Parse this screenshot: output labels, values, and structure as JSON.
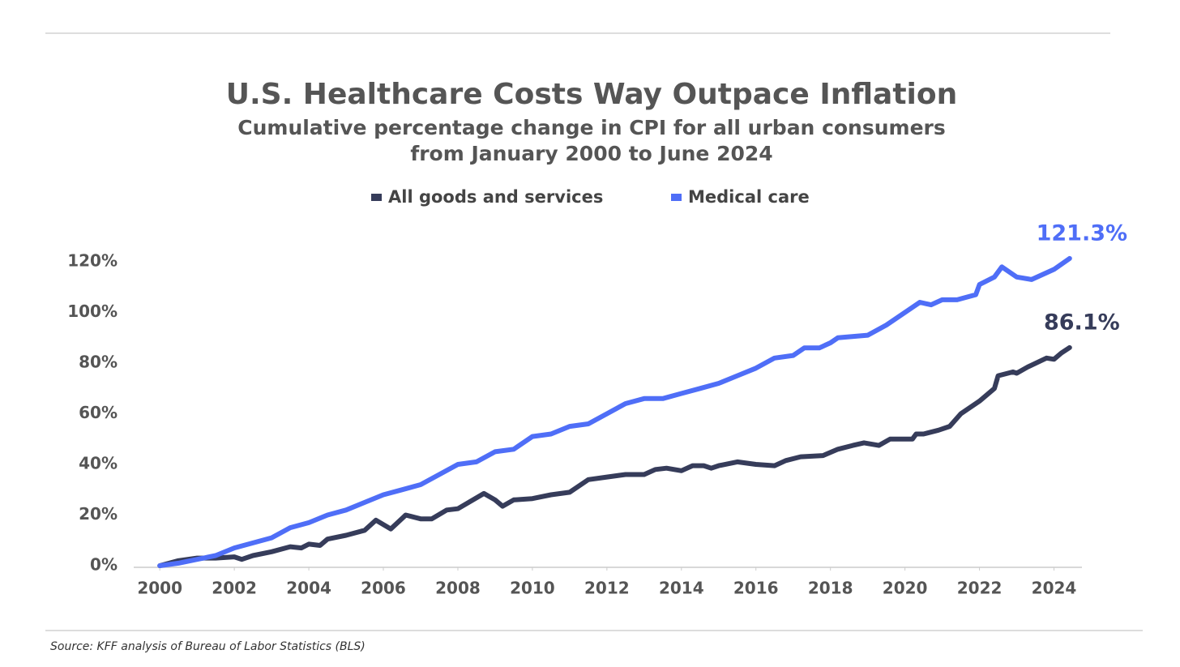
{
  "chart_data": {
    "type": "line",
    "title": "U.S. Healthcare Costs Way Outpace Inflation",
    "subtitle": [
      "Cumulative percentage change in CPI for all urban consumers",
      "from January 2000 to June 2024"
    ],
    "source": "Source: KFF analysis of Bureau of Labor Statistics (BLS)",
    "xlim": [
      1999.3,
      2024.75
    ],
    "xticks": [
      2000,
      2002,
      2004,
      2006,
      2008,
      2010,
      2012,
      2014,
      2016,
      2018,
      2020,
      2022,
      2024
    ],
    "ylim": [
      0,
      120
    ],
    "yticks": [
      {
        "value": 0,
        "label": "0%"
      },
      {
        "value": 20,
        "label": "20%"
      },
      {
        "value": 40,
        "label": "40%"
      },
      {
        "value": 60,
        "label": "60%"
      },
      {
        "value": 80,
        "label": "80%"
      },
      {
        "value": 100,
        "label": "100%"
      },
      {
        "value": 120,
        "label": "120%"
      }
    ],
    "legend": "top",
    "series": [
      {
        "name": "All goods and services",
        "color": "#363c5a",
        "end_label": "86.1%",
        "x": [
          2000,
          2000.5,
          2001,
          2001.5,
          2002,
          2002.2,
          2002.5,
          2003,
          2003.5,
          2003.8,
          2004,
          2004.3,
          2004.5,
          2005,
          2005.5,
          2005.8,
          2006.2,
          2006.6,
          2007,
          2007.3,
          2007.7,
          2008,
          2008.7,
          2009,
          2009.2,
          2009.5,
          2010,
          2010.5,
          2011,
          2011.5,
          2012,
          2012.5,
          2013,
          2013.3,
          2013.6,
          2014,
          2014.3,
          2014.6,
          2014.8,
          2015,
          2015.5,
          2016,
          2016.5,
          2016.8,
          2017.2,
          2017.8,
          2018.2,
          2018.6,
          2018.9,
          2019.3,
          2019.6,
          2020.2,
          2020.3,
          2020.5,
          2020.9,
          2021.2,
          2021.5,
          2022,
          2022.4,
          2022.5,
          2022.9,
          2023,
          2023.3,
          2023.8,
          2024,
          2024.2,
          2024.42
        ],
        "values": [
          0,
          2,
          3,
          3,
          3.5,
          2.5,
          4,
          5.5,
          7.5,
          7,
          8.5,
          8,
          10.5,
          12,
          14,
          18,
          14.5,
          20,
          18.5,
          18.5,
          22,
          22.5,
          28.5,
          26,
          23.5,
          26,
          26.5,
          28,
          29,
          34,
          35,
          36,
          36,
          38,
          38.5,
          37.5,
          39.5,
          39.5,
          38.5,
          39.5,
          41,
          40,
          39.5,
          41.5,
          43,
          43.5,
          46,
          47.5,
          48.5,
          47.5,
          50,
          50,
          52,
          52,
          53.5,
          55,
          60,
          65,
          70,
          75,
          76.5,
          76,
          78.5,
          82,
          81.5,
          84,
          86.1
        ]
      },
      {
        "name": "Medical care",
        "color": "#4f6ef7",
        "end_label": "121.3%",
        "x": [
          2000,
          2000.5,
          2001,
          2001.5,
          2002,
          2002.5,
          2003,
          2003.5,
          2004,
          2004.5,
          2005,
          2005.5,
          2006,
          2006.5,
          2007,
          2007.5,
          2008,
          2008.5,
          2009,
          2009.5,
          2010,
          2010.5,
          2011,
          2011.5,
          2012,
          2012.5,
          2013,
          2013.5,
          2014,
          2014.5,
          2015,
          2015.5,
          2016,
          2016.5,
          2017,
          2017.3,
          2017.7,
          2018,
          2018.2,
          2019,
          2019.5,
          2020,
          2020.4,
          2020.7,
          2021,
          2021.4,
          2021.9,
          2022,
          2022.4,
          2022.6,
          2023,
          2023.4,
          2023.7,
          2024,
          2024.42
        ],
        "values": [
          0,
          1,
          2.5,
          4,
          7,
          9,
          11,
          15,
          17,
          20,
          22,
          25,
          28,
          30,
          32,
          36,
          40,
          41,
          45,
          46,
          51,
          52,
          55,
          56,
          60,
          64,
          66,
          66,
          68,
          70,
          72,
          75,
          78,
          82,
          83,
          86,
          86,
          88,
          90,
          91,
          95,
          100,
          104,
          103,
          105,
          105,
          107,
          111,
          114,
          118,
          114,
          113,
          115,
          117,
          121.3
        ]
      }
    ]
  }
}
